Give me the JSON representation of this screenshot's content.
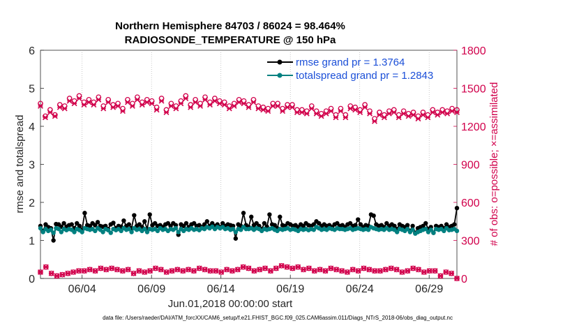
{
  "chart_data": {
    "type": "line",
    "title": [
      "Northern Hemisphere 84703 / 86024 = 98.464%",
      "RADIOSONDE_TEMPERATURE @ 150 hPa"
    ],
    "xlabel": "Jun.01,2018 00:00:00 start",
    "ylabel_left": "rmse and totalspread",
    "ylabel_right": "# of obs: o=possible; ×=assimilated",
    "footer": "data file: /Users/raeder/DAI/ATM_forcXX/CAM6_setup/f.e21.FHIST_BGC.f09_025.CAM6assim.011/Diags_NTrS_2018-06/obs_diag_output.nc",
    "x_ticks": [
      "06/04",
      "06/09",
      "06/14",
      "06/19",
      "06/24",
      "06/29"
    ],
    "x_tick_days": [
      4,
      9,
      14,
      19,
      24,
      29
    ],
    "xlim_days": [
      1,
      31
    ],
    "ylim_left": [
      0,
      6
    ],
    "yticks_left": [
      "0",
      "1",
      "2",
      "3",
      "4",
      "5",
      "6"
    ],
    "ylim_right": [
      0,
      1800
    ],
    "yticks_right": [
      "0",
      "300",
      "600",
      "900",
      "1200",
      "1500",
      "1800"
    ],
    "legend": [
      {
        "label": "rmse grand pr = 1.3764",
        "color": "#000000"
      },
      {
        "label": "totalspread grand pr = 1.2843",
        "color": "#008080"
      }
    ],
    "colors": {
      "rmse": "#000000",
      "spread": "#008080",
      "obs": "#d1004b",
      "legend_text": "#1b4fd8"
    },
    "series": [
      {
        "name": "rmse",
        "axis": "left",
        "values": [
          1.38,
          1.25,
          1.42,
          1.35,
          1.32,
          1.0,
          1.43,
          1.42,
          1.36,
          1.45,
          1.36,
          1.4,
          1.42,
          1.32,
          1.45,
          1.38,
          1.28,
          1.72,
          1.4,
          1.38,
          1.45,
          1.4,
          1.48,
          1.38,
          1.36,
          1.38,
          1.3,
          1.42,
          1.46,
          1.32,
          1.38,
          1.36,
          1.52,
          1.38,
          1.42,
          1.32,
          1.66,
          1.38,
          1.42,
          1.35,
          1.5,
          1.3,
          1.68,
          1.4,
          1.45,
          1.38,
          1.4,
          1.35,
          1.42,
          1.45,
          1.38,
          1.45,
          1.4,
          1.15,
          1.42,
          1.38,
          1.45,
          1.35,
          1.42,
          1.45,
          1.38,
          1.4,
          1.35,
          1.42,
          1.5,
          1.38,
          1.45,
          1.38,
          1.42,
          1.35,
          1.45,
          1.38,
          1.42,
          1.4,
          1.38,
          1.05,
          1.42,
          1.38,
          1.72,
          1.4,
          1.35,
          1.62,
          1.4,
          1.45,
          1.38,
          1.3,
          1.45,
          1.36,
          1.68,
          1.42,
          1.4,
          1.32,
          1.62,
          1.4,
          1.38,
          1.45,
          1.42,
          1.38,
          1.4,
          1.35,
          1.42,
          1.38,
          1.45,
          1.4,
          1.38,
          1.42,
          1.5,
          1.45,
          1.38,
          1.42,
          1.38,
          1.4,
          1.35,
          1.42,
          1.45,
          1.38,
          1.4,
          1.35,
          1.42,
          1.45,
          1.38,
          1.4,
          1.55,
          1.42,
          1.35,
          1.4,
          1.38,
          1.68,
          1.65,
          1.42,
          1.38,
          1.4,
          1.35,
          1.45,
          1.38,
          1.42,
          1.38,
          1.3,
          1.42,
          1.38,
          1.35,
          1.4,
          1.25,
          1.38,
          1.2,
          1.32,
          1.35,
          1.38,
          1.45,
          1.3,
          1.35,
          1.2,
          1.38,
          1.35,
          1.38,
          1.32,
          1.42,
          1.35,
          1.38,
          1.42,
          1.85
        ]
      },
      {
        "name": "totalspread",
        "axis": "left",
        "values": [
          1.32,
          1.22,
          1.3,
          1.25,
          1.28,
          1.2,
          1.32,
          1.3,
          1.22,
          1.3,
          1.27,
          1.3,
          1.28,
          1.22,
          1.3,
          1.27,
          1.22,
          1.32,
          1.3,
          1.28,
          1.3,
          1.25,
          1.32,
          1.28,
          1.22,
          1.3,
          1.27,
          1.2,
          1.3,
          1.27,
          1.3,
          1.25,
          1.32,
          1.28,
          1.3,
          1.22,
          1.32,
          1.28,
          1.3,
          1.25,
          1.3,
          1.22,
          1.3,
          1.28,
          1.3,
          1.25,
          1.32,
          1.28,
          1.3,
          1.25,
          1.3,
          1.28,
          1.32,
          1.22,
          1.3,
          1.25,
          1.3,
          1.28,
          1.32,
          1.28,
          1.3,
          1.27,
          1.32,
          1.3,
          1.35,
          1.32,
          1.36,
          1.3,
          1.35,
          1.32,
          1.35,
          1.3,
          1.32,
          1.28,
          1.3,
          1.22,
          1.3,
          1.28,
          1.35,
          1.3,
          1.3,
          1.32,
          1.28,
          1.32,
          1.3,
          1.25,
          1.3,
          1.28,
          1.3,
          1.32,
          1.28,
          1.25,
          1.3,
          1.28,
          1.3,
          1.32,
          1.28,
          1.3,
          1.28,
          1.25,
          1.3,
          1.28,
          1.3,
          1.27,
          1.3,
          1.28,
          1.35,
          1.32,
          1.28,
          1.3,
          1.28,
          1.32,
          1.3,
          1.28,
          1.32,
          1.3,
          1.3,
          1.28,
          1.3,
          1.32,
          1.28,
          1.3,
          1.32,
          1.3,
          1.28,
          1.3,
          1.28,
          1.35,
          1.32,
          1.3,
          1.28,
          1.3,
          1.28,
          1.32,
          1.28,
          1.3,
          1.28,
          1.22,
          1.3,
          1.28,
          1.25,
          1.3,
          1.22,
          1.28,
          1.18,
          1.22,
          1.25,
          1.28,
          1.3,
          1.22,
          1.28,
          1.2,
          1.3,
          1.28,
          1.3,
          1.25,
          1.32,
          1.27,
          1.28,
          1.3,
          1.25
        ]
      },
      {
        "name": "obs possible",
        "axis": "right",
        "marker": "o",
        "values": [
          1380,
          1280,
          1330,
          1290,
          1370,
          1360,
          1420,
          1400,
          1440,
          1390,
          1410,
          1390,
          1430,
          1360,
          1410,
          1370,
          1380,
          1340,
          1410,
          1380,
          1430,
          1390,
          1410,
          1400,
          1350,
          1420,
          1330,
          1380,
          1360,
          1400,
          1440,
          1370,
          1410,
          1380,
          1430,
          1390,
          1420,
          1400,
          1390,
          1360,
          1380,
          1410,
          1400,
          1370,
          1410,
          1360,
          1350,
          1340,
          1380,
          1380,
          1340,
          1370,
          1370,
          1330,
          1330,
          1320,
          1360,
          1320,
          1300,
          1320,
          1340,
          1290,
          1340,
          1290,
          1360,
          1350,
          1330,
          1370,
          1320,
          1260,
          1310,
          1290,
          1320,
          1330,
          1290,
          1320,
          1300,
          1310,
          1280,
          1310,
          1290,
          1330,
          1310,
          1330,
          1320,
          1340,
          1330
        ]
      },
      {
        "name": "obs assimilated",
        "axis": "right",
        "marker": "x",
        "values": [
          1360,
          1270,
          1310,
          1280,
          1350,
          1340,
          1400,
          1380,
          1420,
          1370,
          1390,
          1370,
          1410,
          1340,
          1390,
          1350,
          1360,
          1320,
          1390,
          1360,
          1410,
          1370,
          1390,
          1380,
          1330,
          1400,
          1310,
          1360,
          1340,
          1380,
          1420,
          1350,
          1390,
          1360,
          1410,
          1370,
          1400,
          1380,
          1370,
          1340,
          1360,
          1390,
          1380,
          1350,
          1390,
          1340,
          1330,
          1320,
          1360,
          1360,
          1320,
          1350,
          1350,
          1310,
          1310,
          1300,
          1340,
          1300,
          1280,
          1300,
          1320,
          1270,
          1320,
          1270,
          1340,
          1330,
          1310,
          1350,
          1300,
          1240,
          1290,
          1270,
          1300,
          1310,
          1270,
          1300,
          1280,
          1290,
          1260,
          1290,
          1270,
          1310,
          1290,
          1310,
          1300,
          1320,
          1310
        ]
      },
      {
        "name": "obs low possible",
        "axis": "right",
        "marker": "o",
        "values": [
          50,
          90,
          40,
          20,
          30,
          40,
          50,
          60,
          60,
          70,
          60,
          80,
          70,
          80,
          70,
          60,
          70,
          40,
          60,
          50,
          60,
          80,
          70,
          50,
          60,
          70,
          60,
          70,
          60,
          80,
          70,
          60,
          60,
          50,
          70,
          60,
          70,
          90,
          80,
          60,
          70,
          80,
          60,
          80,
          100,
          90,
          80,
          90,
          70,
          80,
          60,
          70,
          60,
          80,
          70,
          60,
          50,
          70,
          60,
          80,
          70,
          60,
          60,
          70,
          80,
          70,
          50,
          60,
          80,
          70,
          50,
          60,
          60,
          20,
          50,
          40,
          0
        ]
      },
      {
        "name": "obs low assimilated",
        "axis": "right",
        "marker": "x",
        "values": [
          50,
          90,
          40,
          20,
          30,
          40,
          50,
          60,
          60,
          70,
          60,
          80,
          70,
          80,
          70,
          60,
          70,
          40,
          60,
          50,
          60,
          80,
          70,
          50,
          60,
          70,
          60,
          70,
          60,
          80,
          70,
          60,
          60,
          50,
          70,
          60,
          70,
          90,
          80,
          60,
          70,
          80,
          60,
          80,
          100,
          90,
          80,
          90,
          70,
          80,
          60,
          70,
          60,
          80,
          70,
          60,
          50,
          70,
          60,
          80,
          70,
          60,
          60,
          70,
          80,
          70,
          50,
          60,
          80,
          70,
          50,
          60,
          60,
          20,
          50,
          40,
          0
        ]
      }
    ]
  }
}
